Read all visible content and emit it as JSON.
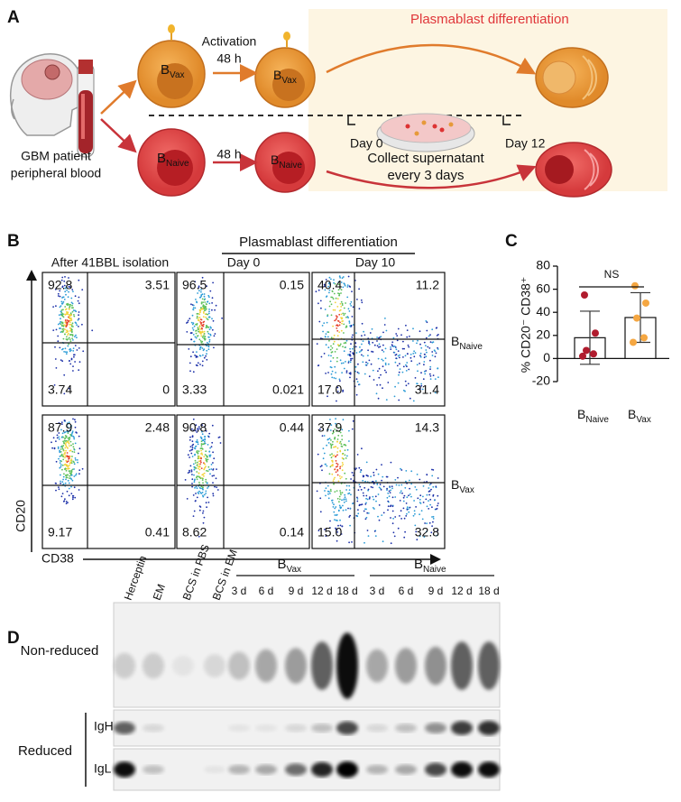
{
  "panel_a": {
    "label": "A",
    "title": "Plasmablast differentiation",
    "source": [
      "GBM patient",
      "peripheral blood"
    ],
    "activation": "Activation",
    "time_top": "48 h",
    "time_bottom": "48 h",
    "cell_vax": [
      "B",
      "Vax"
    ],
    "cell_naive": [
      "B",
      "Naive"
    ],
    "day_start": "Day 0",
    "day_end": "Day 12",
    "collect": [
      "Collect supernatant",
      "every 3 days"
    ]
  },
  "panel_b": {
    "label": "B",
    "header": "Plasmablast differentiation",
    "columns": [
      "After 41BBL isolation",
      "Day 0",
      "Day 10"
    ],
    "y_axis": "CD20",
    "x_axis": "CD38",
    "rows": [
      {
        "label": [
          "B",
          "Naive"
        ],
        "plots": [
          [
            "92.8",
            "3.51",
            "3.74",
            "0"
          ],
          [
            "96.5",
            "0.15",
            "3.33",
            "0.021"
          ],
          [
            "40.4",
            "11.2",
            "17.0",
            "31.4"
          ]
        ]
      },
      {
        "label": [
          "B",
          "Vax"
        ],
        "plots": [
          [
            "87.9",
            "2.48",
            "9.17",
            "0.41"
          ],
          [
            "90.8",
            "0.44",
            "8.62",
            "0.14"
          ],
          [
            "37.9",
            "14.3",
            "15.0",
            "32.8"
          ]
        ]
      }
    ]
  },
  "chart_data": {
    "type": "bar",
    "panel_label": "C",
    "ylabel": "% CD20⁻ CD38⁺",
    "categories": [
      [
        "B",
        "Naive"
      ],
      [
        "B",
        "Vax"
      ]
    ],
    "values": [
      18,
      35.5
    ],
    "errors": [
      23,
      21.5
    ],
    "points": [
      [
        55,
        22,
        7,
        4,
        2
      ],
      [
        63,
        48,
        35,
        18,
        14
      ]
    ],
    "point_colors": [
      "#b01c2e",
      "#f5a742"
    ],
    "color": "#ffffff",
    "annotation": "NS",
    "ylim": [
      -20,
      80
    ],
    "yticks": [
      -20,
      0,
      20,
      40,
      60,
      80
    ]
  },
  "panel_d": {
    "label": "D",
    "lanes": [
      "Herceptin",
      "EM",
      "BCS in PBS",
      "BCS in EM"
    ],
    "groups": [
      {
        "name": [
          "B",
          "Vax"
        ],
        "days": [
          "3 d",
          "6 d",
          "9 d",
          "12 d",
          "18 d"
        ]
      },
      {
        "name": [
          "B",
          "Naive"
        ],
        "days": [
          "3 d",
          "6 d",
          "9 d",
          "12 d",
          "18 d"
        ]
      }
    ],
    "rows": [
      "Non-reduced",
      "Reduced"
    ],
    "chains": [
      "IgH",
      "IgL"
    ]
  }
}
